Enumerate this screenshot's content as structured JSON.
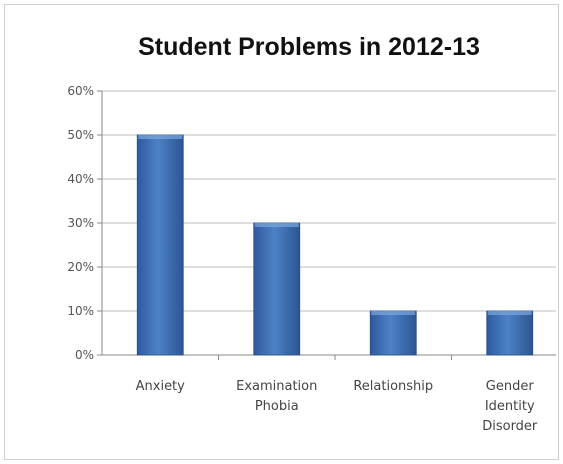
{
  "chart_data": {
    "type": "bar",
    "title": "Student Problems in 2012-13",
    "categories": [
      "Anxiety",
      "Examination Phobia",
      "Relationship",
      "Gender Identity Disorder"
    ],
    "category_label_lines": [
      [
        "Anxiety"
      ],
      [
        "Examination",
        "Phobia"
      ],
      [
        "Relationship"
      ],
      [
        "Gender",
        "Identity",
        "Disorder"
      ]
    ],
    "values": [
      50,
      30,
      10,
      10
    ],
    "value_unit": "%",
    "ylim": [
      0,
      60
    ],
    "yticks": [
      "0%",
      "10%",
      "20%",
      "30%",
      "40%",
      "50%",
      "60%"
    ],
    "grid": true,
    "legend": "none",
    "bar_color": "#3f6fb3"
  }
}
